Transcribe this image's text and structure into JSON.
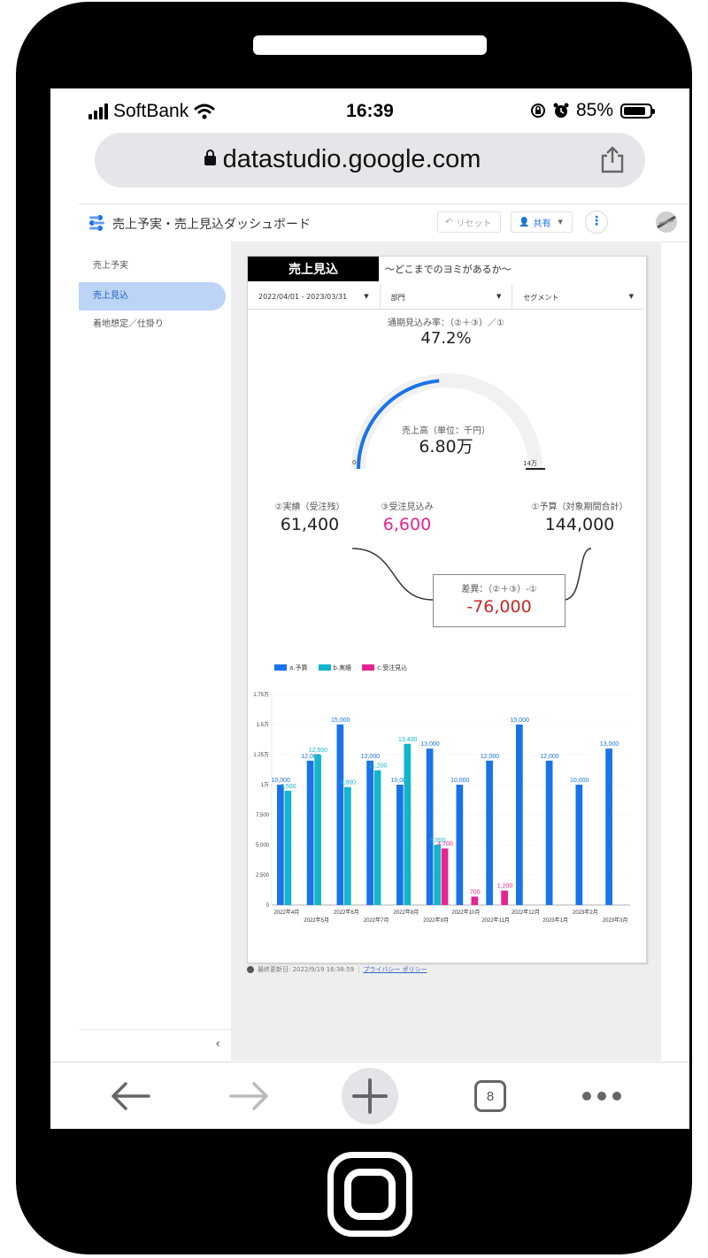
{
  "status_bar": {
    "carrier": "SoftBank",
    "time": "16:39",
    "battery": "85%",
    "battery_level": 0.85
  },
  "browser": {
    "url": "datastudio.google.com",
    "tab_count": "8"
  },
  "app": {
    "title": "売上予実・売上見込ダッシュボード",
    "reset_label": "リセット",
    "share_label": "共有"
  },
  "sidebar": {
    "items": [
      {
        "label": "売上予実"
      },
      {
        "label": "売上見込"
      },
      {
        "label": "着地想定／仕掛り"
      }
    ],
    "collapse": "‹"
  },
  "report": {
    "tab_title": "売上見込",
    "tab_subtitle": "〜どこまでのヨミがあるか〜",
    "filters": [
      "2022/04/01 - 2023/03/31",
      "部門",
      "セグメント"
    ],
    "rate_label": "通期見込み率：（②＋③）／①",
    "rate_value": "47.2%",
    "gauge": {
      "label": "売上高（単位：千円）",
      "value": "6.80万",
      "min": "0",
      "max": "14万",
      "fraction": 0.472
    },
    "kpis": {
      "actual_label": "②実績（受注残）",
      "actual_value": "61,400",
      "forecast_label": "③受注見込み",
      "forecast_value": "6,600",
      "budget_label": "①予算（対象期間合計）",
      "budget_value": "144,000"
    },
    "diff_label": "差異：（②＋③）-①",
    "diff_value": "-76,000",
    "footer_text": "最終更新日: 2022/9/19 16:38:59",
    "footer_sep": "|",
    "footer_link": "プライバシー ポリシー"
  },
  "colors": {
    "budget": "#1a73e8",
    "actual": "#12b5cb",
    "forecast": "#e52592",
    "diff": "#c62828"
  },
  "chart_data": {
    "type": "bar",
    "categories": [
      "2022年4月",
      "2022年5月",
      "2022年6月",
      "2022年7月",
      "2022年8月",
      "2022年9月",
      "2022年10月",
      "2022年11月",
      "2022年12月",
      "2023年1月",
      "2023年2月",
      "2023年3月"
    ],
    "series": [
      {
        "name": "a.予算",
        "values": [
          10000,
          12000,
          15000,
          12000,
          10000,
          13000,
          10000,
          12000,
          15000,
          12000,
          10000,
          13000
        ]
      },
      {
        "name": "b.実績",
        "values": [
          9500,
          12500,
          9800,
          11200,
          13400,
          5000,
          null,
          null,
          null,
          null,
          null,
          null
        ]
      },
      {
        "name": "c.受注見込",
        "values": [
          null,
          null,
          null,
          null,
          null,
          4700,
          700,
          1200,
          null,
          null,
          null,
          null
        ]
      }
    ],
    "data_labels": [
      [
        "10,000",
        "12,000",
        "15,000",
        "12,000",
        "10,000",
        "13,000",
        "10,000",
        "12,000",
        "15,000",
        "12,000",
        "10,000",
        "13,000"
      ],
      [
        "9,500",
        "12,500",
        "9,800",
        "11,200",
        "13,400",
        "5,000",
        "",
        "",
        "",
        "",
        "",
        ""
      ],
      [
        "",
        "",
        "",
        "",
        "",
        "4,700",
        "700",
        "1,200",
        "",
        "",
        "",
        ""
      ]
    ],
    "y_ticks": [
      "0",
      "2,500",
      "5,000",
      "7,500",
      "1万",
      "1.25万",
      "1.5万",
      "1.75万"
    ],
    "ylim": [
      0,
      17500
    ],
    "legend": "top-left"
  }
}
